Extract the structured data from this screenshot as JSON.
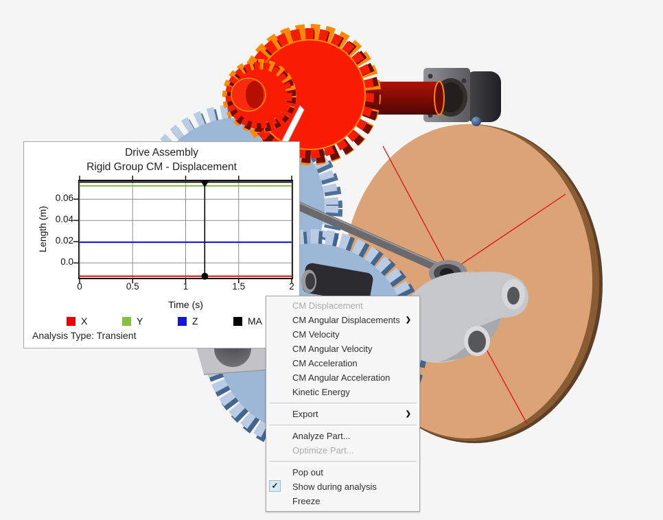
{
  "window": {
    "background": "#f5f5f6"
  },
  "plot_window": {
    "title_line1": "Drive Assembly",
    "title_line2": "Rigid Group CM - Displacement",
    "analysis_note": "Analysis Type: Transient"
  },
  "chart_data": {
    "type": "line",
    "title": "Drive Assembly",
    "subtitle": "Rigid Group CM - Displacement",
    "xlabel": "Time (s)",
    "ylabel": "Length (m)",
    "xlim": [
      0,
      2
    ],
    "ylim": [
      -0.014,
      0.077
    ],
    "xticks": [
      0,
      0.5,
      1,
      1.5,
      2
    ],
    "xtick_labels": [
      "0",
      "0.5",
      "1",
      "1.5",
      "2"
    ],
    "yticks": [
      0,
      0.02,
      0.04,
      0.06
    ],
    "ytick_labels": [
      "0.0",
      "0.02",
      "0.04",
      "0.06"
    ],
    "grid": true,
    "legend_position": "bottom",
    "cursor_time": 1.18,
    "series": [
      {
        "name": "X",
        "color": "#ee0000",
        "constant_value": -0.0125
      },
      {
        "name": "Y",
        "color": "#84c141",
        "constant_value": 0.0725
      },
      {
        "name": "Z",
        "color": "#1515dd",
        "constant_value": 0.0195
      },
      {
        "name": "MA",
        "color": "#000000",
        "constant_value": 0.0761
      }
    ]
  },
  "context_menu": {
    "items": [
      {
        "label": "CM Displacement",
        "disabled": true
      },
      {
        "label": "CM Angular Displacements",
        "submenu": true
      },
      {
        "label": "CM Velocity"
      },
      {
        "label": "CM Angular Velocity"
      },
      {
        "label": "CM Acceleration"
      },
      {
        "label": "CM Angular Acceleration"
      },
      {
        "label": "Kinetic Energy"
      },
      {
        "separator": true
      },
      {
        "label": "Export",
        "submenu": true
      },
      {
        "separator": true
      },
      {
        "label": "Analyze Part..."
      },
      {
        "label": "Optimize Part...",
        "disabled": true
      },
      {
        "separator": true
      },
      {
        "label": "Pop out"
      },
      {
        "label": "Show during analysis",
        "checked": true
      },
      {
        "label": "Freeze"
      }
    ],
    "submenu_arrow": "❯",
    "check_glyph": "✓"
  },
  "scene": {
    "colors": {
      "background": "#f5f5f6",
      "red_gear": "#f91c02",
      "red_gear_dark": "#6f0e00",
      "selection_highlight": "#ff8a00",
      "blue_gear": "#9db7d6",
      "blue_gear_dark": "#4e7096",
      "flywheel_face": "#dca476",
      "flywheel_rim": "#5d4026",
      "shaft_dark_red": "#8e0d05",
      "marker_sphere": "#2a4a7f",
      "spoke_line_red": "#dd1111",
      "metal_gray": "#c5c7ca",
      "motor_dark": "#2c2c30"
    }
  }
}
